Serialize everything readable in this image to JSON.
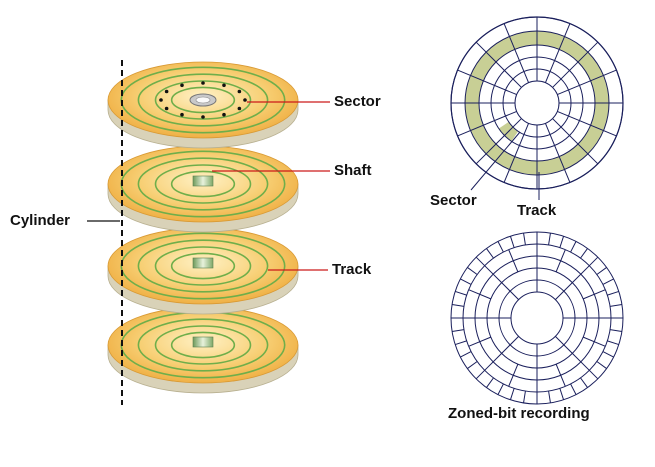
{
  "labels": {
    "sector_left": "Sector",
    "shaft": "Shaft",
    "track_left": "Track",
    "cylinder": "Cylinder",
    "sector_right": "Sector",
    "track_right": "Track",
    "zoned": "Zoned-bit recording"
  },
  "colors": {
    "platter_fill": "#f5c35a",
    "platter_edge": "#d9d2b8",
    "track_line": "#6fae4a",
    "shaft": "#8fb579",
    "highlight_track": "#c8cf95",
    "diagram_line": "#1a1f5c",
    "label_line": "#cc1a1a"
  }
}
